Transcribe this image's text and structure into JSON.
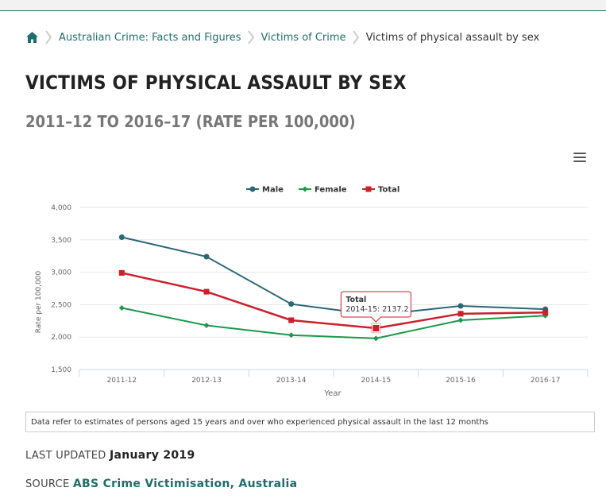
{
  "breadcrumb": {
    "items": [
      "Australian Crime: Facts and Figures",
      "Victims of Crime"
    ],
    "current": "Victims of physical assault by sex"
  },
  "page": {
    "title": "VICTIMS OF PHYSICAL ASSAULT BY SEX",
    "subtitle": "2011–12 TO 2016–17 (RATE PER 100,000)"
  },
  "chart_data": {
    "type": "line",
    "categories": [
      "2011-12",
      "2012-13",
      "2013-14",
      "2014-15",
      "2015-16",
      "2016-17"
    ],
    "series": [
      {
        "name": "Male",
        "color": "#2b6777",
        "marker": "circle",
        "values": [
          3540,
          3240,
          2510,
          2340,
          2480,
          2430
        ]
      },
      {
        "name": "Female",
        "color": "#1a9a4a",
        "marker": "diamond",
        "values": [
          2450,
          2180,
          2030,
          1980,
          2260,
          2330
        ]
      },
      {
        "name": "Total",
        "color": "#cc1f2a",
        "marker": "square",
        "values": [
          2990,
          2700,
          2260,
          2137.2,
          2360,
          2380
        ]
      }
    ],
    "xlabel": "Year",
    "ylabel": "Rate per 100,000",
    "ylim": [
      1500,
      4000
    ],
    "yticks": [
      1500,
      2000,
      2500,
      3000,
      3500,
      4000
    ],
    "ytick_labels": [
      "1,500",
      "2,000",
      "2,500",
      "3,000",
      "3,500",
      "4,000"
    ],
    "legend": "top-center",
    "grid": true,
    "tooltip": {
      "title": "Total",
      "text": "2014-15: 2137.2",
      "series": 2,
      "index": 3
    }
  },
  "note": "Data refer to estimates of persons aged 15 years and over who experienced physical assault in the last 12 months",
  "meta": {
    "updated_label": "LAST UPDATED",
    "updated_value": "January 2019",
    "source_label": "SOURCE",
    "source_value": "ABS Crime Victimisation, Australia"
  },
  "icons": {
    "home": "home-icon",
    "separator": "chevron-right-icon",
    "menu": "hamburger-menu-icon"
  }
}
